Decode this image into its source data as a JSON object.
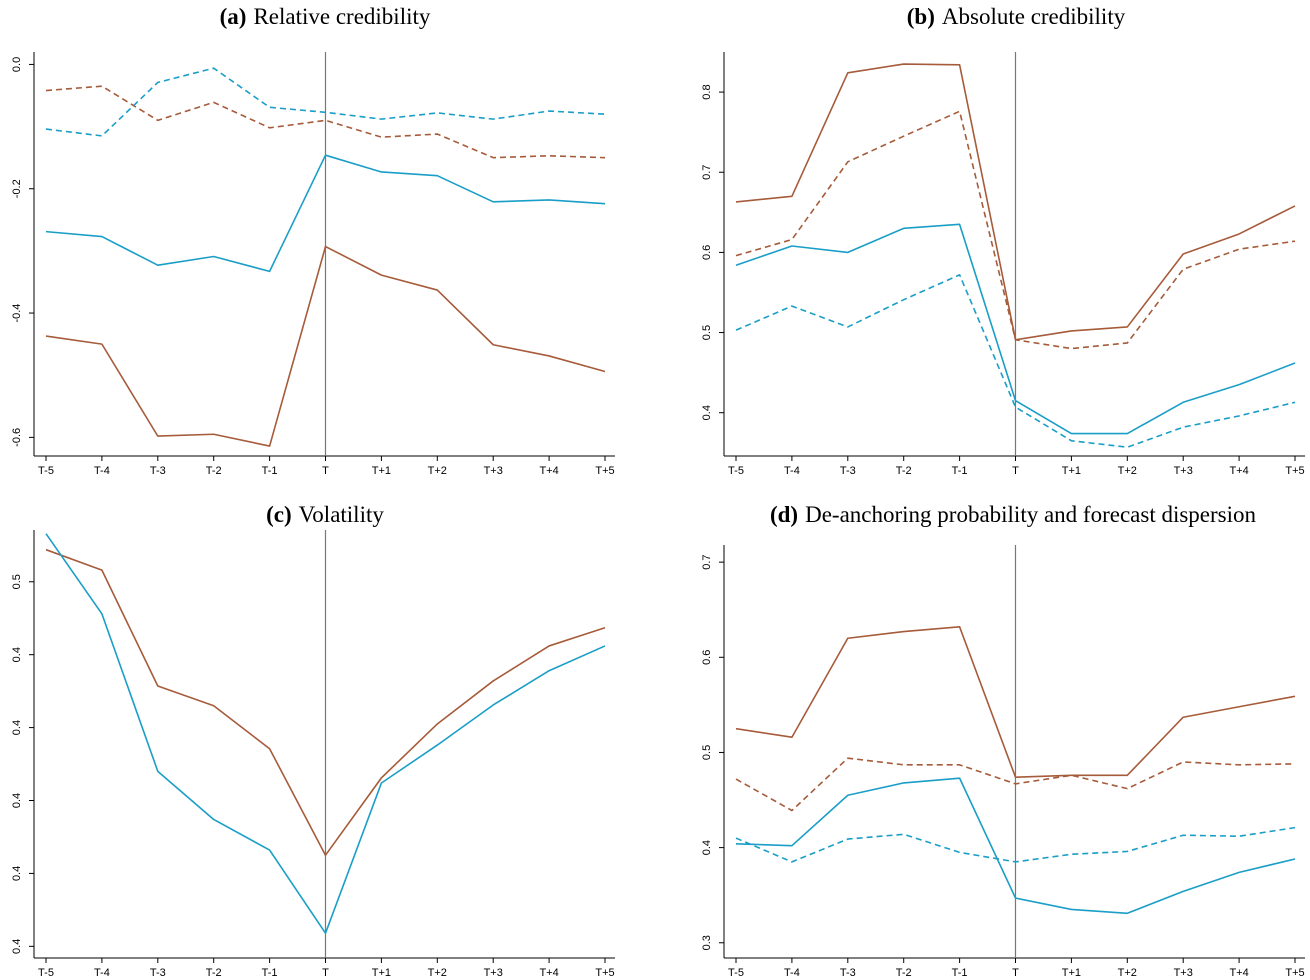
{
  "chart_data": [
    {
      "type": "line",
      "panel_label": "(a)",
      "title": "Relative credibility",
      "categories": [
        "T-5",
        "T-4",
        "T-3",
        "T-2",
        "T-1",
        "T",
        "T+1",
        "T+2",
        "T+3",
        "T+4",
        "T+5"
      ],
      "ylim": [
        -0.63,
        0.02
      ],
      "yticks": [
        -0.6,
        -0.4,
        -0.2,
        {
          "value": 0,
          "label": "0.0"
        }
      ],
      "series": [
        {
          "color": "#a65b3a",
          "dashed": false,
          "values": [
            -0.437,
            -0.45,
            -0.598,
            -0.595,
            -0.614,
            -0.293,
            -0.339,
            -0.363,
            -0.451,
            -0.469,
            -0.494
          ]
        },
        {
          "color": "#a65b3a",
          "dashed": true,
          "values": [
            -0.042,
            -0.035,
            -0.09,
            -0.061,
            -0.102,
            -0.09,
            -0.117,
            -0.112,
            -0.15,
            -0.147,
            -0.15
          ]
        },
        {
          "color": "#1a9ec7",
          "dashed": false,
          "values": [
            -0.269,
            -0.277,
            -0.323,
            -0.309,
            -0.333,
            -0.146,
            -0.173,
            -0.179,
            -0.221,
            -0.218,
            -0.224
          ]
        },
        {
          "color": "#1a9ec7",
          "dashed": true,
          "values": [
            -0.104,
            -0.115,
            -0.029,
            -0.006,
            -0.069,
            -0.077,
            -0.088,
            -0.078,
            -0.088,
            -0.075,
            -0.08
          ]
        }
      ]
    },
    {
      "type": "line",
      "panel_label": "(b)",
      "title": "Absolute credibility",
      "categories": [
        "T-5",
        "T-4",
        "T-3",
        "T-2",
        "T-1",
        "T",
        "T+1",
        "T+2",
        "T+3",
        "T+4",
        "T+5"
      ],
      "ylim": [
        0.346,
        0.85
      ],
      "yticks": [
        0.4,
        0.5,
        0.6,
        0.7,
        0.8
      ],
      "series": [
        {
          "color": "#a65b3a",
          "dashed": false,
          "values": [
            0.663,
            0.67,
            0.824,
            0.835,
            0.834,
            0.491,
            0.502,
            0.507,
            0.598,
            0.623,
            0.658
          ]
        },
        {
          "color": "#a65b3a",
          "dashed": true,
          "values": [
            0.596,
            0.616,
            0.713,
            0.745,
            0.776,
            0.491,
            0.48,
            0.487,
            0.579,
            0.604,
            0.614
          ]
        },
        {
          "color": "#1a9ec7",
          "dashed": false,
          "values": [
            0.584,
            0.608,
            0.6,
            0.63,
            0.635,
            0.415,
            0.374,
            0.374,
            0.413,
            0.435,
            0.462
          ]
        },
        {
          "color": "#1a9ec7",
          "dashed": true,
          "values": [
            0.503,
            0.533,
            0.507,
            0.541,
            0.572,
            0.407,
            0.365,
            0.357,
            0.382,
            0.396,
            0.413
          ]
        }
      ]
    },
    {
      "type": "line",
      "panel_label": "(c)",
      "title": "Volatility",
      "categories": [
        "T-5",
        "T-4",
        "T-3",
        "T-2",
        "T-1",
        "T",
        "T+1",
        "T+2",
        "T+3",
        "T+4",
        "T+5"
      ],
      "ylim": [
        0.3984,
        0.4571
      ],
      "yticks": [
        0.4,
        {
          "value": 0.41,
          "label": "0.4"
        },
        {
          "value": 0.42,
          "label": "0.4"
        },
        {
          "value": 0.43,
          "label": "0.4"
        },
        {
          "value": 0.44,
          "label": "0.4"
        },
        {
          "value": 0.45,
          "label": "0.5"
        }
      ],
      "series": [
        {
          "color": "#a65b3a",
          "dashed": false,
          "values": [
            0.4544,
            0.4516,
            0.4357,
            0.433,
            0.4271,
            0.4125,
            0.4231,
            0.4305,
            0.4364,
            0.4412,
            0.4437
          ]
        },
        {
          "color": "#1a9ec7",
          "dashed": false,
          "values": [
            0.4566,
            0.4456,
            0.424,
            0.4174,
            0.4132,
            0.4018,
            0.4224,
            0.4276,
            0.4331,
            0.4378,
            0.4412
          ]
        }
      ]
    },
    {
      "type": "line",
      "panel_label": "(d)",
      "title": "De-anchoring probability and forecast dispersion",
      "categories": [
        "T-5",
        "T-4",
        "T-3",
        "T-2",
        "T-1",
        "T",
        "T+1",
        "T+2",
        "T+3",
        "T+4",
        "T+5"
      ],
      "ylim": [
        0.284,
        0.718
      ],
      "yticks": [
        0.3,
        0.4,
        0.5,
        0.6,
        0.7
      ],
      "series": [
        {
          "color": "#a65b3a",
          "dashed": false,
          "values": [
            0.525,
            0.516,
            0.62,
            0.627,
            0.632,
            0.474,
            0.476,
            0.476,
            0.537,
            0.548,
            0.559
          ]
        },
        {
          "color": "#a65b3a",
          "dashed": true,
          "values": [
            0.472,
            0.439,
            0.494,
            0.487,
            0.487,
            0.467,
            0.476,
            0.462,
            0.49,
            0.487,
            0.488
          ]
        },
        {
          "color": "#1a9ec7",
          "dashed": false,
          "values": [
            0.404,
            0.402,
            0.455,
            0.468,
            0.473,
            0.347,
            0.335,
            0.331,
            0.354,
            0.374,
            0.388
          ]
        },
        {
          "color": "#1a9ec7",
          "dashed": true,
          "values": [
            0.41,
            0.385,
            0.409,
            0.414,
            0.395,
            0.385,
            0.393,
            0.396,
            0.413,
            0.412,
            0.421
          ]
        }
      ]
    }
  ]
}
